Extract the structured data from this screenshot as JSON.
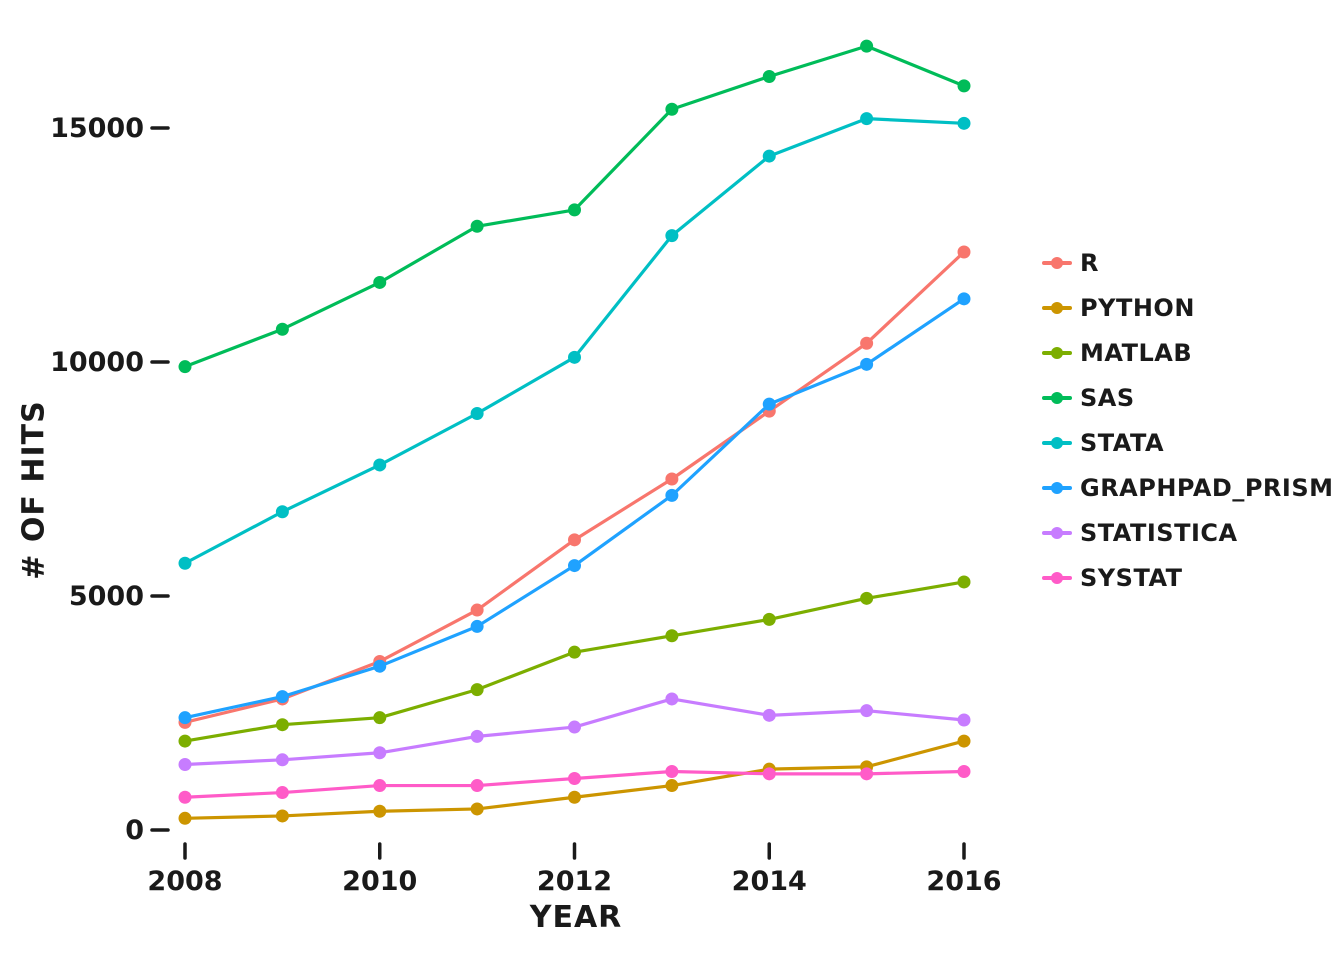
{
  "chart_data": {
    "type": "line",
    "title": "",
    "xlabel": "YEAR",
    "ylabel": "# OF HITS",
    "x": [
      2008,
      2009,
      2010,
      2011,
      2012,
      2013,
      2014,
      2015,
      2016
    ],
    "x_ticks": [
      2008,
      2010,
      2012,
      2014,
      2016
    ],
    "y_ticks": [
      0,
      5000,
      10000,
      15000
    ],
    "xlim": [
      2008,
      2016
    ],
    "ylim": [
      0,
      17000
    ],
    "grid": false,
    "legend_position": "right",
    "series": [
      {
        "name": "R",
        "color": "#F8766D",
        "values": [
          2300,
          2800,
          3600,
          4700,
          6200,
          7500,
          8950,
          10400,
          12350
        ]
      },
      {
        "name": "PYTHON",
        "color": "#CC9500",
        "values": [
          250,
          300,
          400,
          450,
          700,
          950,
          1300,
          1350,
          1900
        ]
      },
      {
        "name": "MATLAB",
        "color": "#7CAE00",
        "values": [
          1900,
          2250,
          2400,
          3000,
          3800,
          4150,
          4500,
          4950,
          5300
        ]
      },
      {
        "name": "SAS",
        "color": "#00BC59",
        "values": [
          9900,
          10700,
          11700,
          12900,
          13250,
          15400,
          16100,
          16750,
          15900
        ]
      },
      {
        "name": "STATA",
        "color": "#00BFC4",
        "values": [
          5700,
          6800,
          7800,
          8900,
          10100,
          12700,
          14400,
          15200,
          15100
        ]
      },
      {
        "name": "GRAPHPAD_PRISM",
        "color": "#1FA2FF",
        "values": [
          2400,
          2850,
          3500,
          4350,
          5650,
          7150,
          9100,
          9950,
          11350
        ]
      },
      {
        "name": "STATISTICA",
        "color": "#C77CFF",
        "values": [
          1400,
          1500,
          1650,
          2000,
          2200,
          2800,
          2450,
          2550,
          2350
        ]
      },
      {
        "name": "SYSTAT",
        "color": "#FF5BC8",
        "values": [
          700,
          800,
          950,
          950,
          1100,
          1250,
          1200,
          1200,
          1250
        ]
      }
    ]
  }
}
